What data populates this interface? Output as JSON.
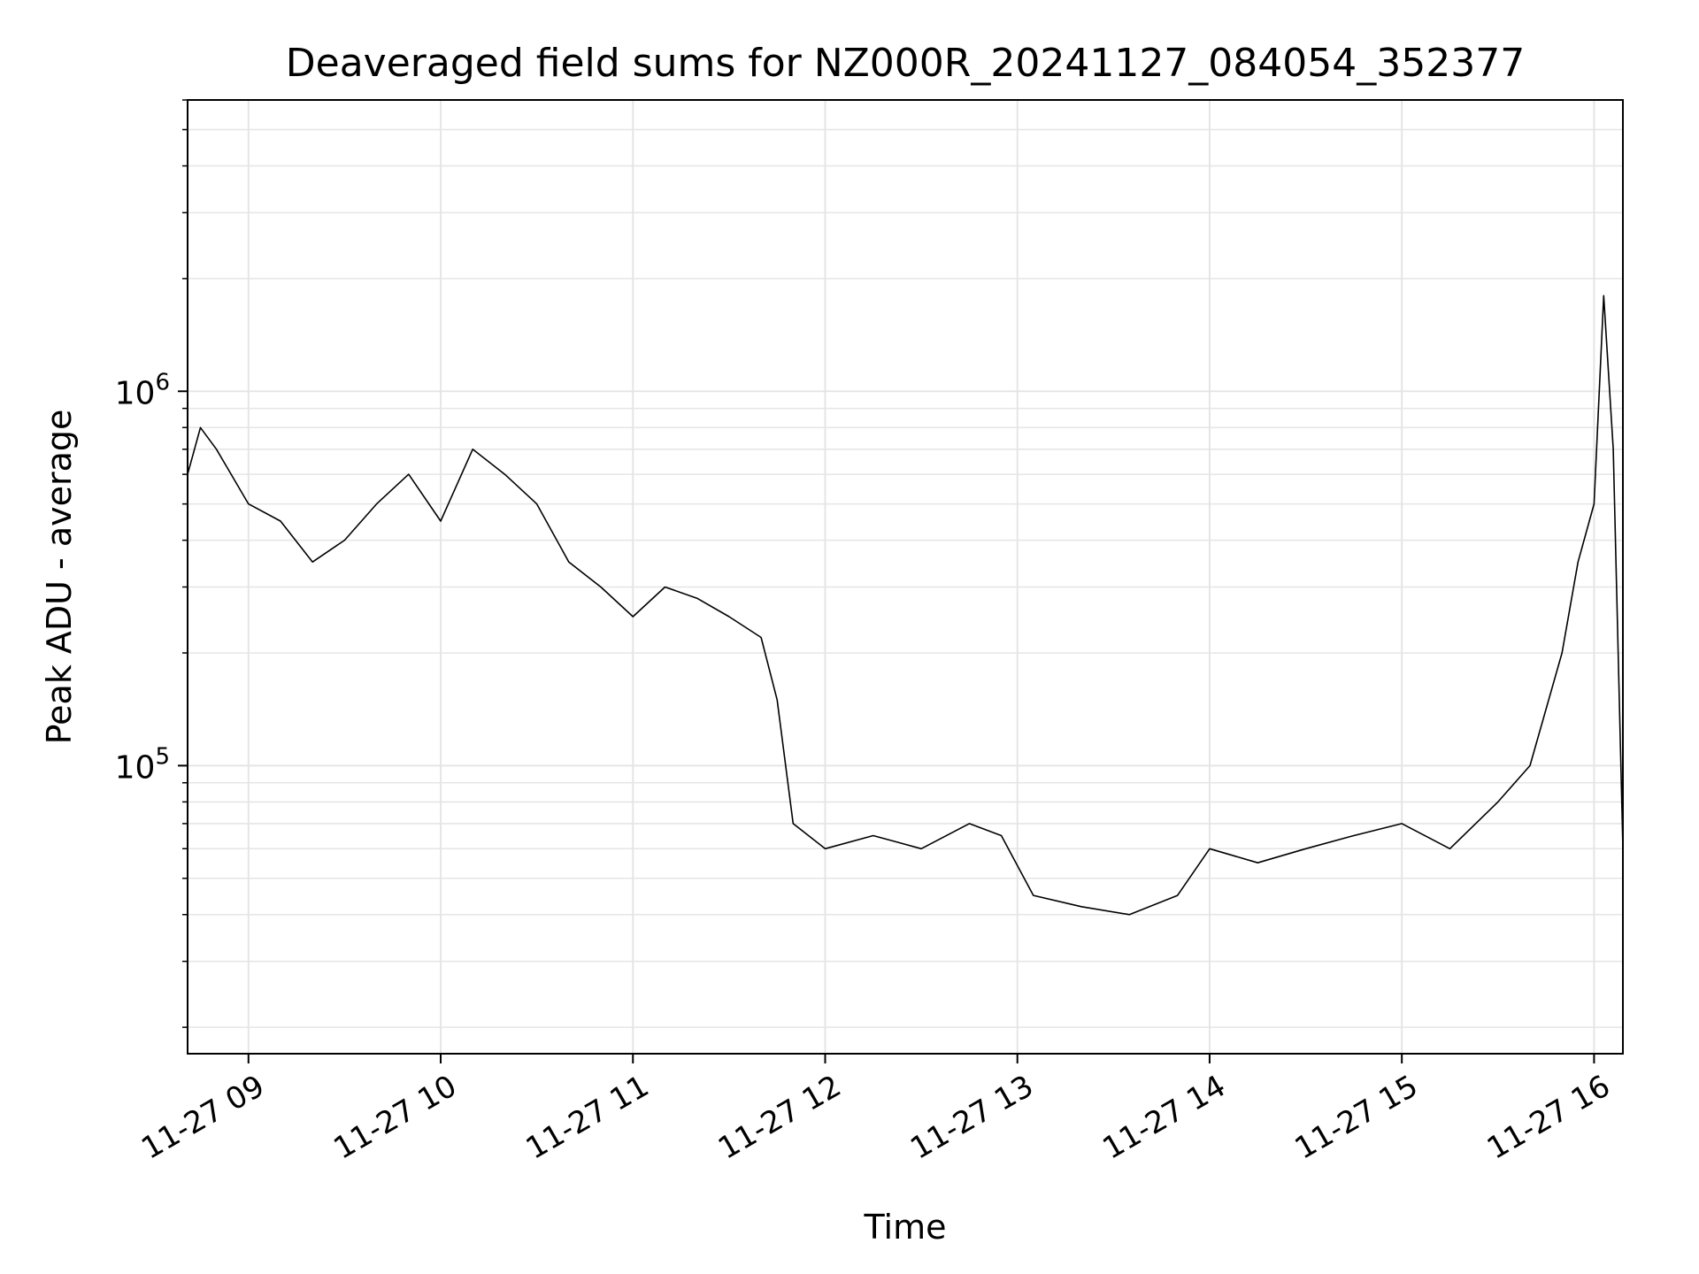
{
  "chart_data": {
    "type": "line",
    "title": "Deaveraged field sums for NZ000R_20241127_084054_352377",
    "xlabel": "Time",
    "ylabel": "Peak ADU - average",
    "yscale": "log",
    "ylim": [
      17000,
      6000000
    ],
    "xlim": [
      "2024-11-27 08:41",
      "2024-11-27 16:09"
    ],
    "grid": true,
    "legend": "none",
    "line_color": "#000000",
    "grid_color": "#e5e5e5",
    "x_ticks": [
      {
        "t": "2024-11-27 09:00",
        "label": "11-27 09"
      },
      {
        "t": "2024-11-27 10:00",
        "label": "11-27 10"
      },
      {
        "t": "2024-11-27 11:00",
        "label": "11-27 11"
      },
      {
        "t": "2024-11-27 12:00",
        "label": "11-27 12"
      },
      {
        "t": "2024-11-27 13:00",
        "label": "11-27 13"
      },
      {
        "t": "2024-11-27 14:00",
        "label": "11-27 14"
      },
      {
        "t": "2024-11-27 15:00",
        "label": "11-27 15"
      },
      {
        "t": "2024-11-27 16:00",
        "label": "11-27 16"
      }
    ],
    "y_major_ticks": [
      {
        "value": 100000,
        "base": "10",
        "exp": "5"
      },
      {
        "value": 1000000,
        "base": "10",
        "exp": "6"
      }
    ],
    "series": [
      {
        "x": [
          "2024-11-27 08:41",
          "2024-11-27 08:45",
          "2024-11-27 08:50",
          "2024-11-27 09:00",
          "2024-11-27 09:10",
          "2024-11-27 09:20",
          "2024-11-27 09:30",
          "2024-11-27 09:40",
          "2024-11-27 09:50",
          "2024-11-27 10:00",
          "2024-11-27 10:10",
          "2024-11-27 10:20",
          "2024-11-27 10:30",
          "2024-11-27 10:40",
          "2024-11-27 10:50",
          "2024-11-27 11:00",
          "2024-11-27 11:10",
          "2024-11-27 11:20",
          "2024-11-27 11:30",
          "2024-11-27 11:40",
          "2024-11-27 11:45",
          "2024-11-27 11:50",
          "2024-11-27 12:00",
          "2024-11-27 12:15",
          "2024-11-27 12:30",
          "2024-11-27 12:45",
          "2024-11-27 12:55",
          "2024-11-27 13:05",
          "2024-11-27 13:20",
          "2024-11-27 13:35",
          "2024-11-27 13:50",
          "2024-11-27 14:00",
          "2024-11-27 14:15",
          "2024-11-27 14:30",
          "2024-11-27 14:45",
          "2024-11-27 15:00",
          "2024-11-27 15:15",
          "2024-11-27 15:30",
          "2024-11-27 15:40",
          "2024-11-27 15:50",
          "2024-11-27 15:55",
          "2024-11-27 16:00",
          "2024-11-27 16:03",
          "2024-11-27 16:06",
          "2024-11-27 16:09"
        ],
        "y": [
          600000,
          800000,
          700000,
          500000,
          450000,
          350000,
          400000,
          500000,
          600000,
          450000,
          700000,
          600000,
          500000,
          350000,
          300000,
          250000,
          300000,
          280000,
          250000,
          220000,
          150000,
          70000,
          60000,
          65000,
          60000,
          70000,
          65000,
          45000,
          42000,
          40000,
          45000,
          60000,
          55000,
          60000,
          65000,
          70000,
          60000,
          80000,
          100000,
          200000,
          350000,
          500000,
          1800000,
          700000,
          60000
        ]
      }
    ]
  }
}
